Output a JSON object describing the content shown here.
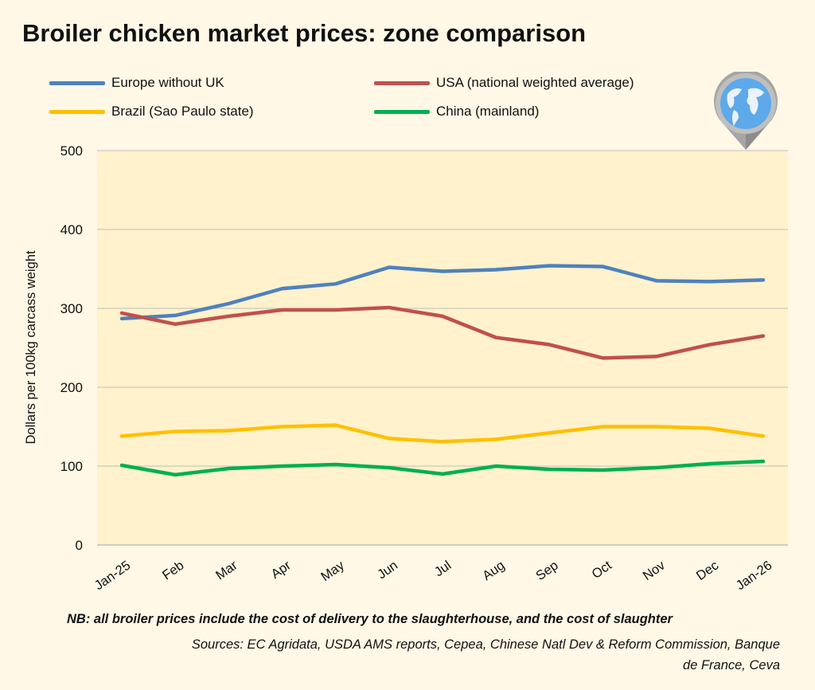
{
  "chart_data": {
    "type": "line",
    "title": "Broiler chicken market prices: zone comparison",
    "ylabel": "Dollars per 100kg carcass weight",
    "xlabel": "",
    "ylim": [
      0,
      500
    ],
    "yticks": [
      0,
      100,
      200,
      300,
      400,
      500
    ],
    "grid": true,
    "legend_position": "top",
    "categories": [
      "Jan-25",
      "Feb",
      "Mar",
      "Apr",
      "May",
      "Jun",
      "Jul",
      "Aug",
      "Sep",
      "Oct",
      "Nov",
      "Dec",
      "Jan-26"
    ],
    "series": [
      {
        "name": "Europe without UK",
        "color": "#4F81BD",
        "values": [
          287,
          291,
          306,
          325,
          331,
          352,
          347,
          349,
          354,
          353,
          335,
          334,
          336
        ]
      },
      {
        "name": "USA (national weighted average)",
        "color": "#C0504D",
        "values": [
          294,
          280,
          290,
          298,
          298,
          301,
          290,
          263,
          254,
          237,
          239,
          254,
          265
        ]
      },
      {
        "name": "Brazil (Sao Paulo state)",
        "color": "#FFC000",
        "values": [
          138,
          144,
          145,
          150,
          152,
          135,
          131,
          134,
          142,
          150,
          150,
          148,
          138
        ]
      },
      {
        "name": "China (mainland)",
        "color": "#00B050",
        "values": [
          101,
          89,
          97,
          100,
          102,
          98,
          90,
          100,
          96,
          95,
          98,
          103,
          106
        ]
      }
    ],
    "plot_background": "#FFF2CC"
  },
  "note": "NB: all broiler prices include the cost of delivery to the slaughterhouse, and the cost of slaughter",
  "sources": "Sources: EC Agridata, USDA AMS reports, Cepea, Chinese Natl Dev & Reform Commission, Banque de France, Ceva",
  "icon": "globe-map-pin-icon"
}
